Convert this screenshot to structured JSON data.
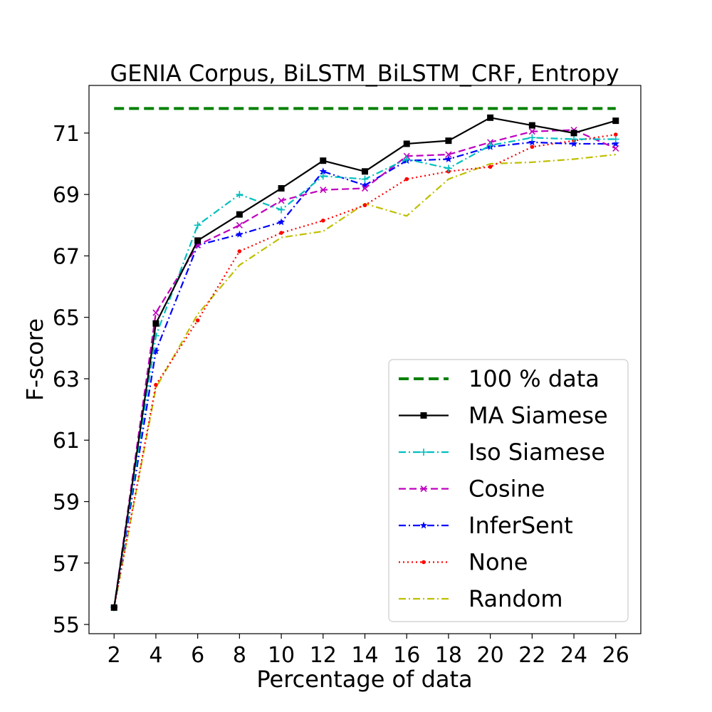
{
  "chart_data": {
    "type": "line",
    "title": "GENIA Corpus, BiLSTM_BiLSTM_CRF, Entropy",
    "xlabel": "Percentage of data",
    "ylabel": "F-score",
    "x": [
      2,
      4,
      6,
      8,
      10,
      12,
      14,
      16,
      18,
      20,
      22,
      24,
      26
    ],
    "x_ticks": [
      "2",
      "4",
      "6",
      "8",
      "10",
      "12",
      "14",
      "16",
      "18",
      "20",
      "22",
      "24",
      "26"
    ],
    "y_ticks": [
      "55",
      "57",
      "59",
      "61",
      "63",
      "65",
      "67",
      "69",
      "71"
    ],
    "y_tick_values": [
      55,
      57,
      59,
      61,
      63,
      65,
      67,
      69,
      71
    ],
    "xlim": [
      0.8,
      27.2
    ],
    "ylim": [
      54.7,
      72.55
    ],
    "grid": false,
    "legend_position": "bottom-right",
    "series": [
      {
        "name": "100 % data",
        "color": "#008000",
        "dash": "dashed",
        "marker": "none",
        "values": [
          71.8,
          71.8,
          71.8,
          71.8,
          71.8,
          71.8,
          71.8,
          71.8,
          71.8,
          71.8,
          71.8,
          71.8,
          71.8
        ]
      },
      {
        "name": "MA Siamese",
        "color": "#000000",
        "dash": "solid",
        "marker": "square",
        "values": [
          55.55,
          64.8,
          67.5,
          68.35,
          69.2,
          70.1,
          69.75,
          70.65,
          70.75,
          71.5,
          71.25,
          71.0,
          71.4
        ]
      },
      {
        "name": "Iso Siamese",
        "color": "#00bfbf",
        "dash": "dashdot",
        "marker": "plus",
        "values": [
          55.55,
          64.4,
          68.0,
          69.0,
          68.5,
          69.6,
          69.5,
          70.15,
          69.85,
          70.6,
          70.85,
          70.8,
          70.8
        ]
      },
      {
        "name": "Cosine",
        "color": "#bf00bf",
        "dash": "dashed",
        "marker": "x",
        "values": [
          55.55,
          65.15,
          67.35,
          68.0,
          68.8,
          69.15,
          69.2,
          70.25,
          70.3,
          70.7,
          71.05,
          71.1,
          70.5
        ]
      },
      {
        "name": "InferSent",
        "color": "#0000ff",
        "dash": "dashdot",
        "marker": "star",
        "values": [
          55.55,
          63.9,
          67.35,
          67.7,
          68.1,
          69.75,
          69.3,
          70.1,
          70.15,
          70.55,
          70.7,
          70.65,
          70.65
        ]
      },
      {
        "name": "None",
        "color": "#ff0000",
        "dash": "dotted",
        "marker": "dot",
        "values": [
          55.55,
          62.8,
          64.9,
          67.15,
          67.75,
          68.15,
          68.65,
          69.5,
          69.75,
          69.9,
          70.55,
          70.75,
          70.95
        ]
      },
      {
        "name": "Random",
        "color": "#bfbf00",
        "dash": "dashdot",
        "marker": "none",
        "values": [
          55.55,
          62.7,
          65.1,
          66.7,
          67.6,
          67.8,
          68.7,
          68.3,
          69.5,
          70.0,
          70.05,
          70.15,
          70.3
        ]
      }
    ]
  }
}
